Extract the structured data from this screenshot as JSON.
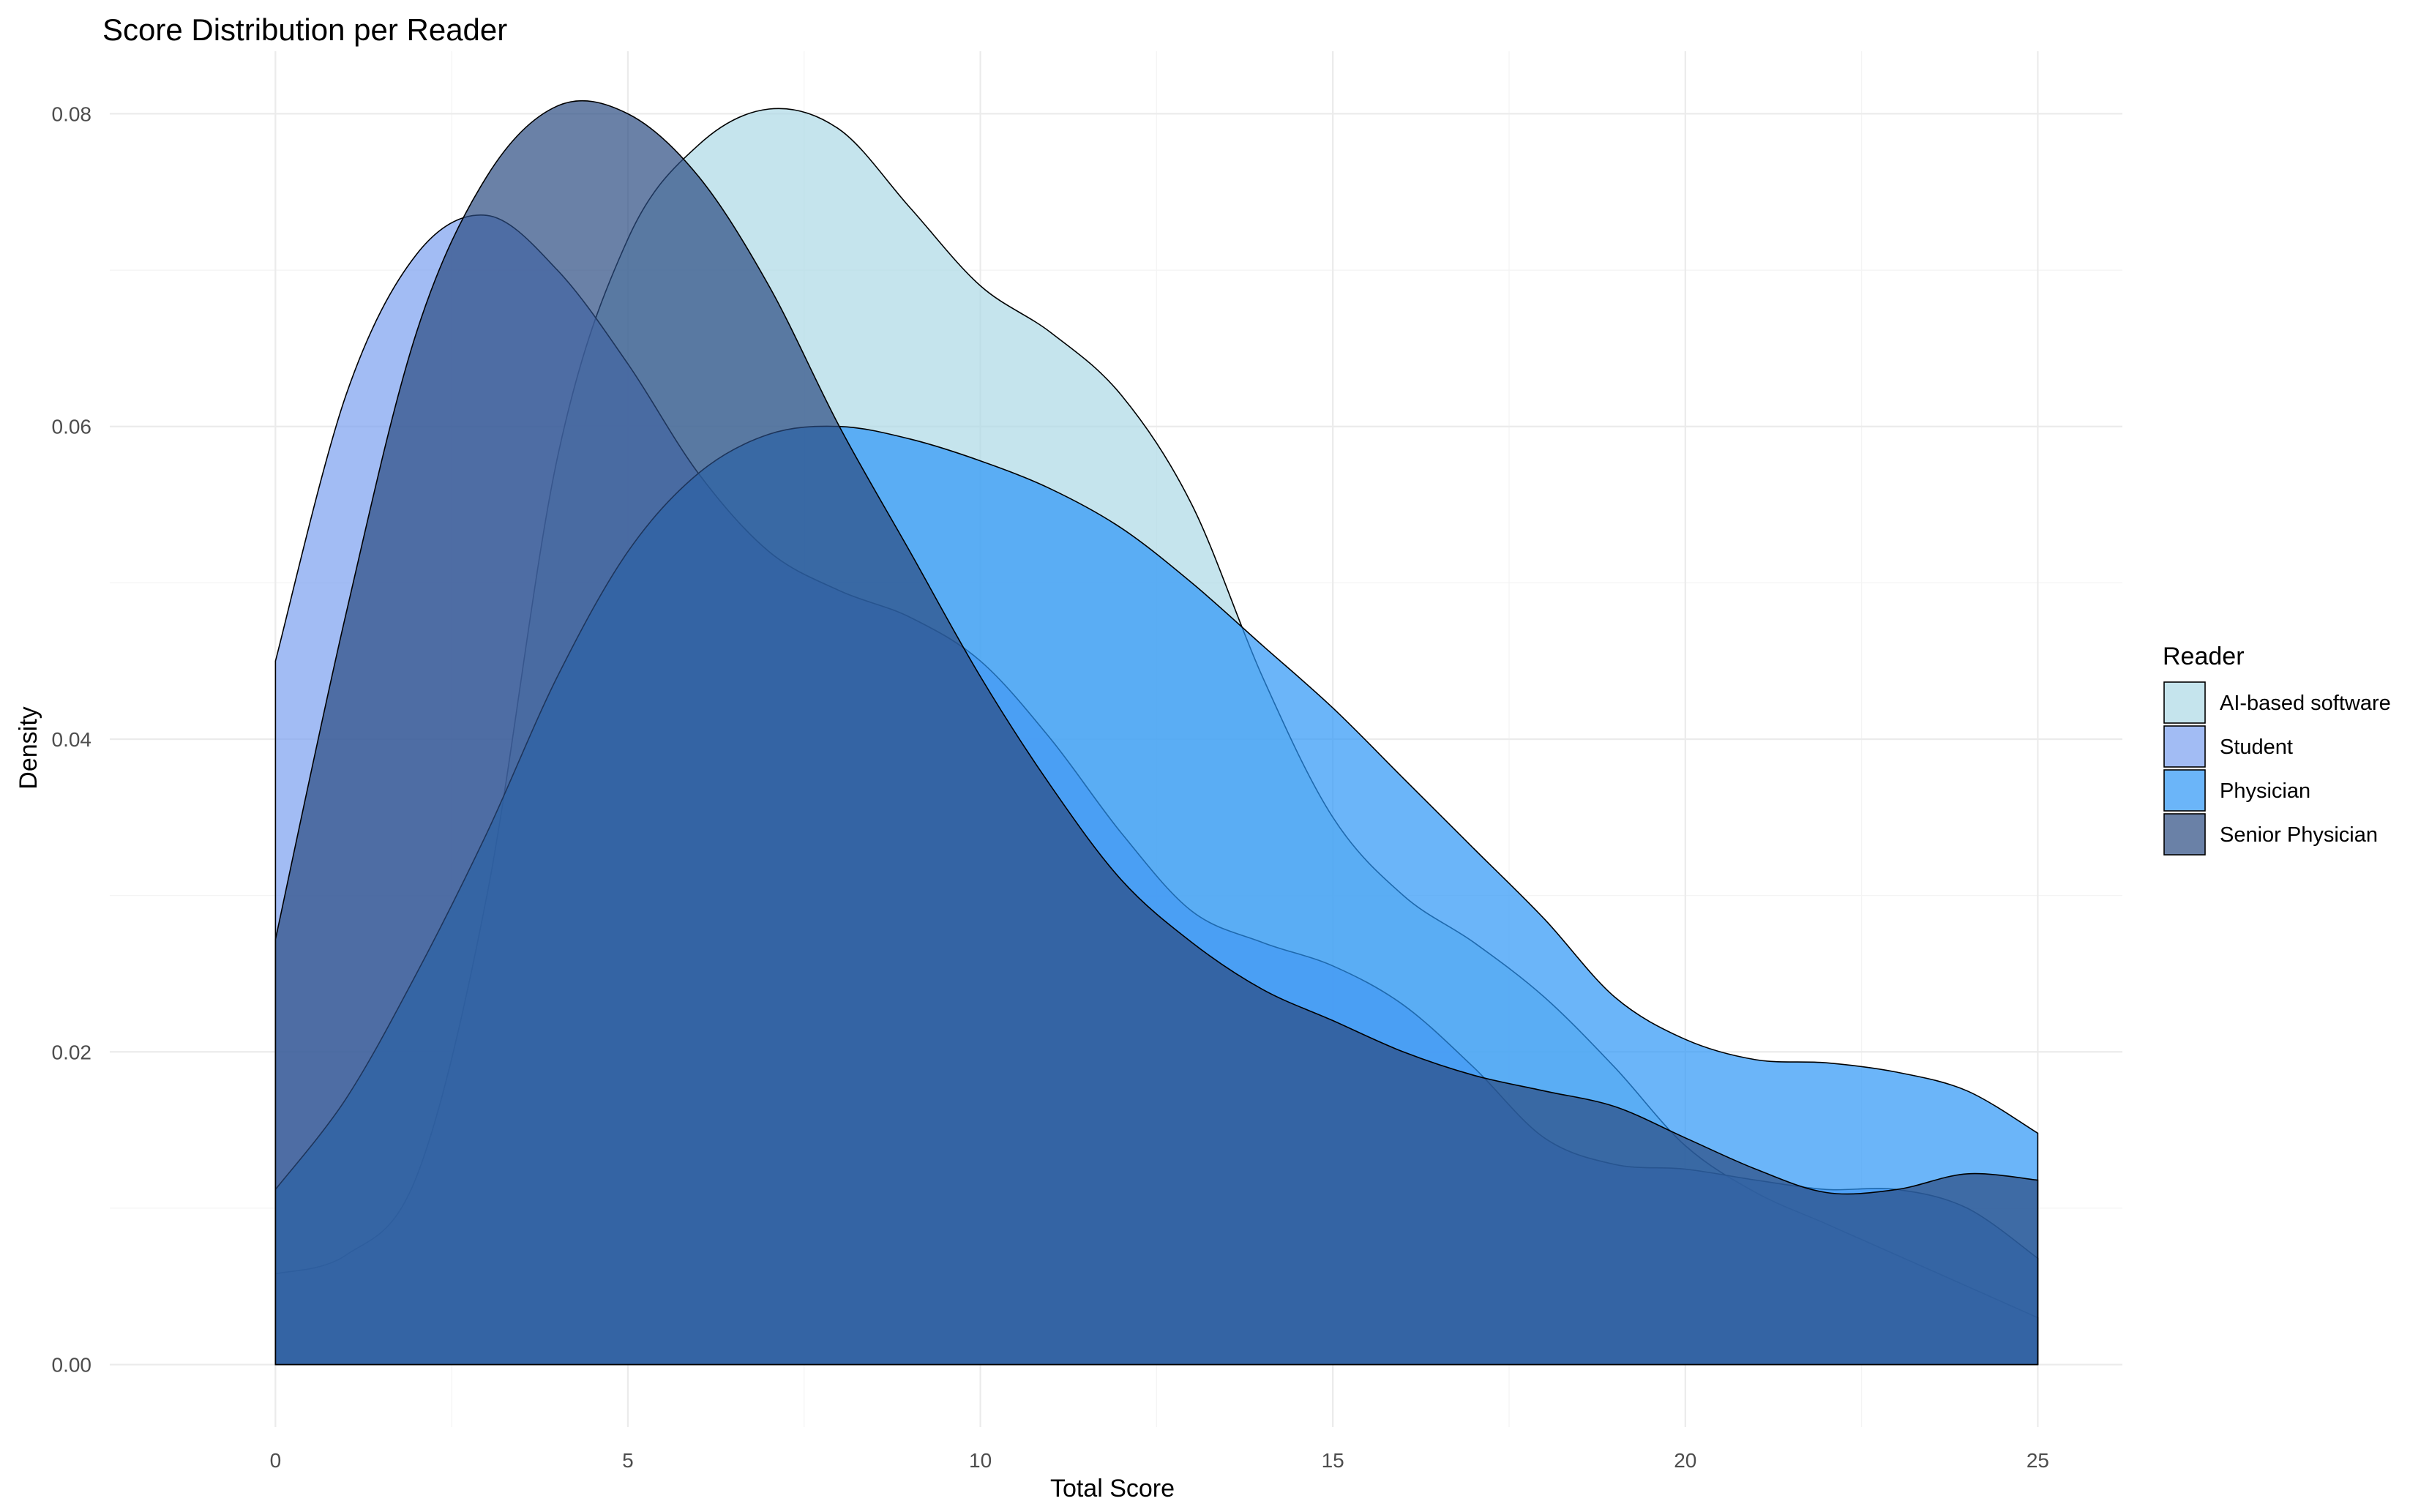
{
  "chart_data": {
    "type": "area",
    "subtype": "density",
    "title": "Score Distribution per Reader",
    "xlabel": "Total Score",
    "ylabel": "Density",
    "xlim": [
      -2.35,
      26.2
    ],
    "ylim": [
      -0.004,
      0.084
    ],
    "x_ticks": [
      0,
      5,
      10,
      15,
      20,
      25
    ],
    "y_ticks": [
      0.0,
      0.02,
      0.04,
      0.06,
      0.08
    ],
    "x_tick_labels": [
      "0",
      "5",
      "10",
      "15",
      "20",
      "25"
    ],
    "y_tick_labels": [
      "0.00",
      "0.02",
      "0.04",
      "0.06",
      "0.08"
    ],
    "grid": true,
    "legend": {
      "title": "Reader",
      "position": "right"
    },
    "fill_opacity": 0.7,
    "series": [
      {
        "name": "AI-based software",
        "color": "#add8e6",
        "points": [
          [
            0,
            0.0058
          ],
          [
            1,
            0.007
          ],
          [
            2,
            0.012
          ],
          [
            3,
            0.03
          ],
          [
            4,
            0.058
          ],
          [
            5,
            0.072
          ],
          [
            6,
            0.078
          ],
          [
            7,
            0.0803
          ],
          [
            8,
            0.079
          ],
          [
            9,
            0.074
          ],
          [
            10,
            0.069
          ],
          [
            11,
            0.066
          ],
          [
            12,
            0.062
          ],
          [
            13,
            0.055
          ],
          [
            14,
            0.044
          ],
          [
            15,
            0.035
          ],
          [
            16,
            0.03
          ],
          [
            17,
            0.027
          ],
          [
            18,
            0.0235
          ],
          [
            19,
            0.019
          ],
          [
            20,
            0.014
          ],
          [
            21,
            0.011
          ],
          [
            22,
            0.009
          ],
          [
            23,
            0.007
          ],
          [
            24,
            0.005
          ],
          [
            25,
            0.003
          ]
        ]
      },
      {
        "name": "Student",
        "color": "#7ba0f0",
        "points": [
          [
            0,
            0.045
          ],
          [
            1,
            0.062
          ],
          [
            2,
            0.071
          ],
          [
            3,
            0.0735
          ],
          [
            4,
            0.07
          ],
          [
            5,
            0.064
          ],
          [
            6,
            0.057
          ],
          [
            7,
            0.052
          ],
          [
            8,
            0.0495
          ],
          [
            9,
            0.0478
          ],
          [
            10,
            0.045
          ],
          [
            11,
            0.04
          ],
          [
            12,
            0.034
          ],
          [
            13,
            0.029
          ],
          [
            14,
            0.027
          ],
          [
            15,
            0.0255
          ],
          [
            16,
            0.023
          ],
          [
            17,
            0.019
          ],
          [
            18,
            0.0145
          ],
          [
            19,
            0.0128
          ],
          [
            20,
            0.0125
          ],
          [
            21,
            0.0118
          ],
          [
            22,
            0.0112
          ],
          [
            23,
            0.0112
          ],
          [
            24,
            0.01
          ],
          [
            25,
            0.0068
          ]
        ]
      },
      {
        "name": "Physician",
        "color": "#2c96f7",
        "points": [
          [
            0,
            0.0112
          ],
          [
            1,
            0.017
          ],
          [
            2,
            0.025
          ],
          [
            3,
            0.034
          ],
          [
            4,
            0.044
          ],
          [
            5,
            0.052
          ],
          [
            6,
            0.057
          ],
          [
            7,
            0.0595
          ],
          [
            8,
            0.06
          ],
          [
            9,
            0.0592
          ],
          [
            10,
            0.0578
          ],
          [
            11,
            0.056
          ],
          [
            12,
            0.0535
          ],
          [
            13,
            0.05
          ],
          [
            14,
            0.046
          ],
          [
            15,
            0.042
          ],
          [
            16,
            0.0375
          ],
          [
            17,
            0.033
          ],
          [
            18,
            0.0285
          ],
          [
            19,
            0.0235
          ],
          [
            20,
            0.0208
          ],
          [
            21,
            0.0195
          ],
          [
            22,
            0.0193
          ],
          [
            23,
            0.0187
          ],
          [
            24,
            0.0175
          ],
          [
            25,
            0.0148
          ]
        ]
      },
      {
        "name": "Senior Physician",
        "color": "#2b4b82",
        "points": [
          [
            0,
            0.0272
          ],
          [
            1,
            0.048
          ],
          [
            2,
            0.066
          ],
          [
            3,
            0.076
          ],
          [
            4,
            0.0805
          ],
          [
            5,
            0.08
          ],
          [
            6,
            0.076
          ],
          [
            7,
            0.069
          ],
          [
            8,
            0.06
          ],
          [
            9,
            0.052
          ],
          [
            10,
            0.044
          ],
          [
            11,
            0.037
          ],
          [
            12,
            0.031
          ],
          [
            13,
            0.027
          ],
          [
            14,
            0.024
          ],
          [
            15,
            0.022
          ],
          [
            16,
            0.02
          ],
          [
            17,
            0.0185
          ],
          [
            18,
            0.0175
          ],
          [
            19,
            0.0165
          ],
          [
            20,
            0.0145
          ],
          [
            21,
            0.0125
          ],
          [
            22,
            0.011
          ],
          [
            23,
            0.0112
          ],
          [
            24,
            0.0122
          ],
          [
            25,
            0.0118
          ]
        ]
      }
    ]
  }
}
